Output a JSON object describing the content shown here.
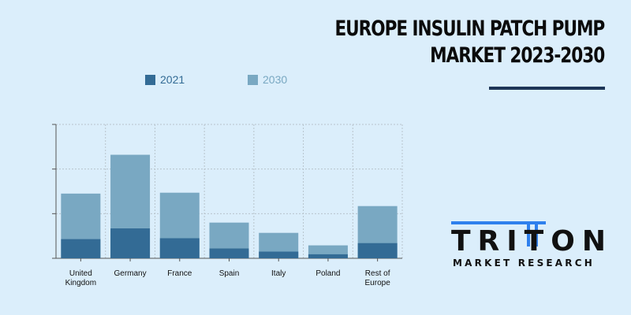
{
  "title": {
    "line1": "EUROPE INSULIN PATCH PUMP",
    "line2": "MARKET 2023-2030"
  },
  "logo": {
    "name": "TRITON",
    "subtitle": "MARKET RESEARCH",
    "accent_color": "#2f80ed"
  },
  "colors": {
    "background": "#dbeefb",
    "series_2021": "#336b95",
    "series_2030": "#79a8c2",
    "title_underline": "#1d3557"
  },
  "chart_data": {
    "type": "bar",
    "stacked": true,
    "grid": true,
    "legend_position": "top-left",
    "categories": [
      [
        "United",
        "Kingdom"
      ],
      [
        "Germany"
      ],
      [
        "France"
      ],
      [
        "Spain"
      ],
      [
        "Italy"
      ],
      [
        "Poland"
      ],
      [
        "Rest of",
        "Europe"
      ]
    ],
    "series": [
      {
        "name": "2021",
        "color": "#336b95",
        "values": [
          0.43,
          0.67,
          0.45,
          0.22,
          0.15,
          0.09,
          0.34
        ]
      },
      {
        "name": "2030",
        "color": "#79a8c2",
        "values": [
          1.45,
          2.32,
          1.47,
          0.8,
          0.57,
          0.29,
          1.17
        ]
      }
    ],
    "ylim": [
      0,
      3
    ],
    "y_ticks": [
      0,
      1,
      2,
      3
    ],
    "show_y_tick_labels": false,
    "xlabel": "",
    "ylabel": ""
  }
}
